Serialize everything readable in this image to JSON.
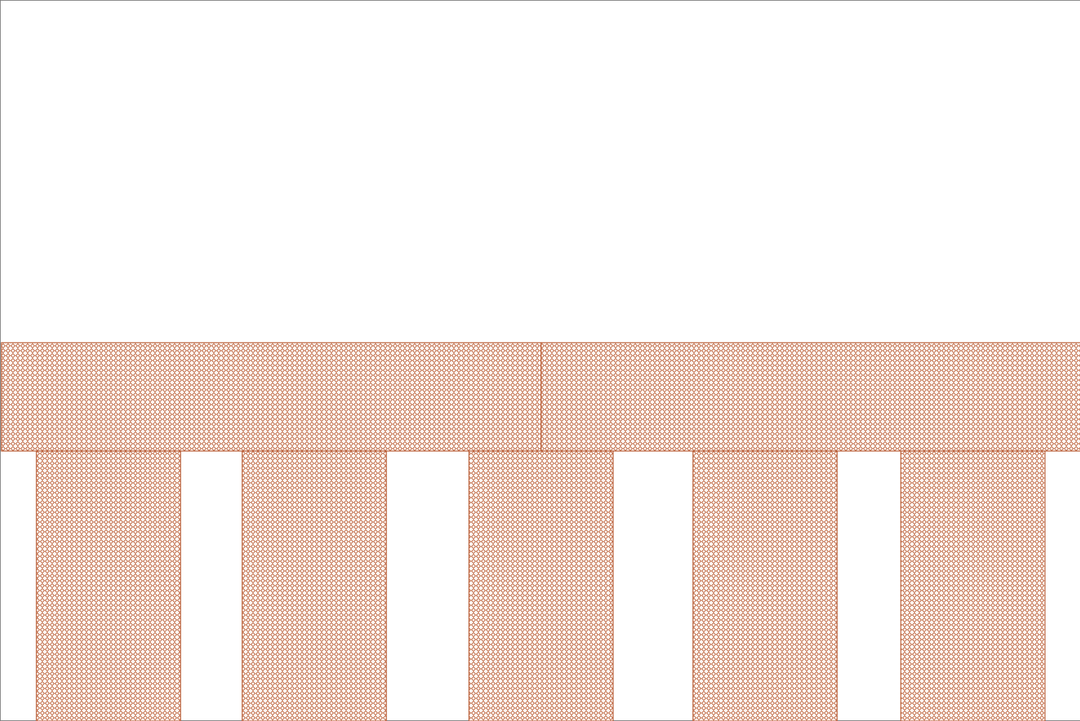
{
  "diagram": {
    "fill_pattern": "diamond-mesh",
    "colors": {
      "line": "#b5532a",
      "fill": "#fdf7f3",
      "frame": "#7a7a7a",
      "background": "#ffffff"
    },
    "beam": {
      "segments": 2
    },
    "columns": {
      "count": 5
    }
  }
}
